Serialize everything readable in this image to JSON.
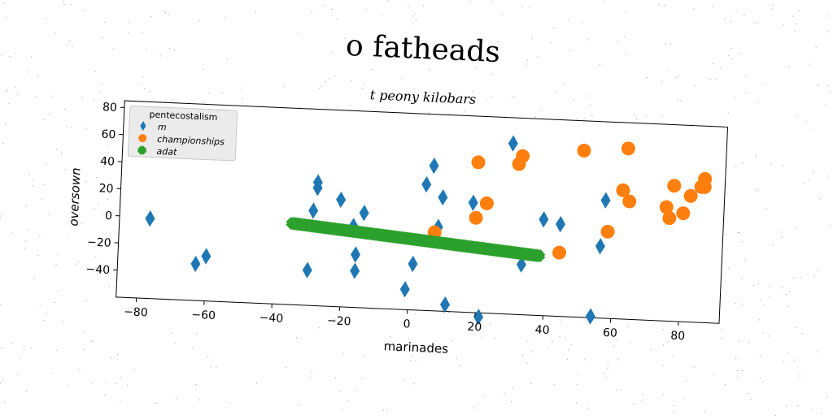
{
  "title": "o fatheads",
  "subtitle": "t peony kilobars",
  "chart_data": {
    "type": "scatter",
    "xlabel": "marinades",
    "ylabel": "oversown",
    "xlim": [
      -86,
      92
    ],
    "ylim": [
      -60,
      85
    ],
    "xticks": [
      -80,
      -60,
      -40,
      -20,
      0,
      20,
      40,
      60,
      80
    ],
    "yticks": [
      -40,
      -20,
      0,
      20,
      40,
      60,
      80
    ],
    "grid": false,
    "legend": {
      "title": "pentecostalism",
      "placement": "top-left"
    },
    "series": [
      {
        "name": "m",
        "color": "#1f77b4",
        "marker": "diamond",
        "points": [
          [
            -77,
            -1
          ],
          [
            -63,
            -33
          ],
          [
            -60,
            -27
          ],
          [
            -30,
            -34
          ],
          [
            -29,
            10
          ],
          [
            -28,
            27
          ],
          [
            -28,
            31
          ],
          [
            -21,
            19
          ],
          [
            -17,
            0
          ],
          [
            -16,
            -21
          ],
          [
            -16,
            -33
          ],
          [
            -14,
            10
          ],
          [
            -1,
            -45
          ],
          [
            1,
            -26
          ],
          [
            4,
            33
          ],
          [
            6,
            47
          ],
          [
            8,
            2
          ],
          [
            9,
            24
          ],
          [
            11,
            -55
          ],
          [
            18,
            21
          ],
          [
            21,
            -63
          ],
          [
            29,
            66
          ],
          [
            33,
            -23
          ],
          [
            39,
            11
          ],
          [
            44,
            8
          ],
          [
            54,
            -59
          ],
          [
            56,
            -7
          ],
          [
            57,
            27
          ]
        ]
      },
      {
        "name": "championships",
        "color": "#ff7f0e",
        "marker": "circle",
        "points": [
          [
            7,
            -2
          ],
          [
            19,
            10
          ],
          [
            19,
            51
          ],
          [
            22,
            21
          ],
          [
            31,
            51
          ],
          [
            32,
            57
          ],
          [
            44,
            -13
          ],
          [
            50,
            63
          ],
          [
            58,
            4
          ],
          [
            62,
            35
          ],
          [
            63,
            66
          ],
          [
            64,
            27
          ],
          [
            75,
            24
          ],
          [
            76,
            16
          ],
          [
            77,
            40
          ],
          [
            80,
            20
          ],
          [
            82,
            33
          ],
          [
            85,
            40
          ],
          [
            86,
            46
          ],
          [
            86,
            40
          ]
        ]
      },
      {
        "name": "adat",
        "color": "#2ca02c",
        "marker": "x",
        "line": {
          "x_start": -35,
          "x_end": 38,
          "y_start": 0,
          "y_end": -16,
          "count": 120
        }
      }
    ]
  }
}
